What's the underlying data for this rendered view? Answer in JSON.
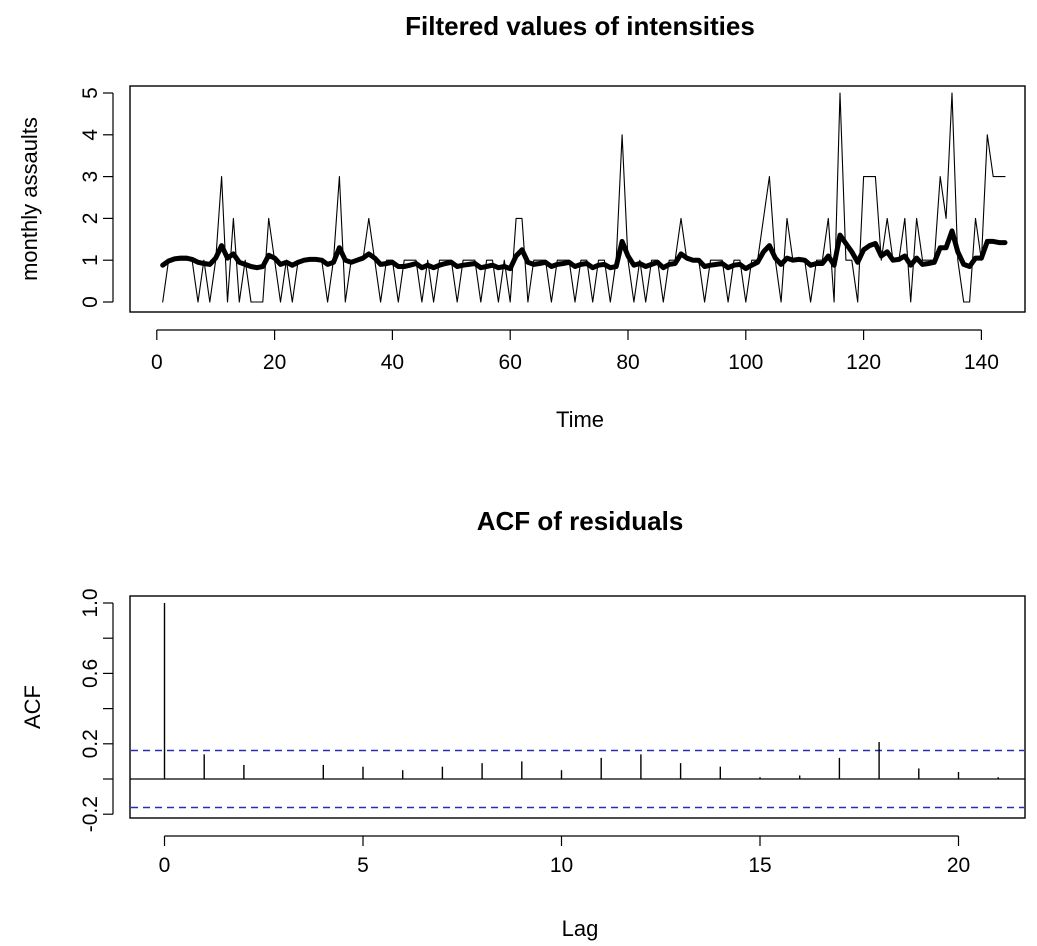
{
  "chart_data": [
    {
      "type": "line",
      "title": "Filtered values of intensities",
      "xlabel": "Time",
      "ylabel": "monthly assaults",
      "xlim": [
        1,
        144
      ],
      "ylim": [
        0,
        5
      ],
      "xticks": [
        0,
        20,
        40,
        60,
        80,
        100,
        120,
        140
      ],
      "yticks": [
        0,
        1,
        2,
        3,
        4,
        5
      ],
      "grid": false,
      "series": [
        {
          "style": "thin",
          "x": [
            1,
            2,
            3,
            4,
            5,
            6,
            7,
            8,
            9,
            10,
            11,
            12,
            13,
            14,
            15,
            16,
            17,
            18,
            19,
            20,
            21,
            22,
            23,
            24,
            25,
            26,
            27,
            28,
            29,
            30,
            31,
            32,
            33,
            34,
            35,
            36,
            37,
            38,
            39,
            40,
            41,
            42,
            43,
            44,
            45,
            46,
            47,
            48,
            49,
            50,
            51,
            52,
            53,
            54,
            55,
            56,
            57,
            58,
            59,
            60,
            61,
            62,
            63,
            64,
            65,
            66,
            67,
            68,
            69,
            70,
            71,
            72,
            73,
            74,
            75,
            76,
            77,
            78,
            79,
            80,
            81,
            82,
            83,
            84,
            85,
            86,
            87,
            88,
            89,
            90,
            91,
            92,
            93,
            94,
            95,
            96,
            97,
            98,
            99,
            100,
            101,
            102,
            103,
            104,
            105,
            106,
            107,
            108,
            109,
            110,
            111,
            112,
            113,
            114,
            115,
            116,
            117,
            118,
            119,
            120,
            121,
            122,
            123,
            124,
            125,
            126,
            127,
            128,
            129,
            130,
            131,
            132,
            133,
            134,
            135,
            136,
            137,
            138,
            139,
            140,
            141,
            142,
            143,
            144
          ],
          "y": [
            0,
            1,
            1,
            1,
            1,
            1,
            0,
            1,
            0,
            1,
            3,
            0,
            2,
            0,
            1,
            0,
            0,
            0,
            2,
            1,
            0,
            1,
            0,
            1,
            1,
            1,
            1,
            1,
            0,
            1,
            3,
            0,
            1,
            1,
            1,
            2,
            1,
            0,
            1,
            1,
            0,
            1,
            1,
            1,
            0,
            1,
            0,
            1,
            1,
            1,
            0,
            1,
            1,
            1,
            0,
            1,
            1,
            0,
            1,
            0,
            2,
            2,
            0,
            1,
            1,
            1,
            0,
            1,
            1,
            1,
            0,
            1,
            1,
            0,
            1,
            1,
            0,
            1,
            4,
            1,
            0,
            1,
            0,
            1,
            1,
            0,
            1,
            1,
            2,
            1,
            1,
            1,
            0,
            1,
            1,
            1,
            0,
            1,
            1,
            0,
            1,
            1,
            2,
            3,
            1,
            0,
            2,
            1,
            1,
            1,
            0,
            1,
            1,
            2,
            0,
            5,
            1,
            1,
            0,
            3,
            3,
            3,
            1,
            2,
            1,
            1,
            2,
            0,
            2,
            1,
            1,
            1,
            3,
            2,
            5,
            1,
            0,
            0,
            2,
            1,
            4,
            3,
            3,
            3
          ]
        },
        {
          "style": "thick",
          "x": [
            1,
            2,
            3,
            4,
            5,
            6,
            7,
            8,
            9,
            10,
            11,
            12,
            13,
            14,
            15,
            16,
            17,
            18,
            19,
            20,
            21,
            22,
            23,
            24,
            25,
            26,
            27,
            28,
            29,
            30,
            31,
            32,
            33,
            34,
            35,
            36,
            37,
            38,
            39,
            40,
            41,
            42,
            43,
            44,
            45,
            46,
            47,
            48,
            49,
            50,
            51,
            52,
            53,
            54,
            55,
            56,
            57,
            58,
            59,
            60,
            61,
            62,
            63,
            64,
            65,
            66,
            67,
            68,
            69,
            70,
            71,
            72,
            73,
            74,
            75,
            76,
            77,
            78,
            79,
            80,
            81,
            82,
            83,
            84,
            85,
            86,
            87,
            88,
            89,
            90,
            91,
            92,
            93,
            94,
            95,
            96,
            97,
            98,
            99,
            100,
            101,
            102,
            103,
            104,
            105,
            106,
            107,
            108,
            109,
            110,
            111,
            112,
            113,
            114,
            115,
            116,
            117,
            118,
            119,
            120,
            121,
            122,
            123,
            124,
            125,
            126,
            127,
            128,
            129,
            130,
            131,
            132,
            133,
            134,
            135,
            136,
            137,
            138,
            139,
            140,
            141,
            142,
            143,
            144
          ],
          "y": [
            0.88,
            0.98,
            1.03,
            1.05,
            1.05,
            1.02,
            0.95,
            0.92,
            0.9,
            1.05,
            1.35,
            1.05,
            1.15,
            0.95,
            0.9,
            0.85,
            0.82,
            0.85,
            1.12,
            1.05,
            0.9,
            0.95,
            0.88,
            0.95,
            1.0,
            1.02,
            1.02,
            1.0,
            0.9,
            0.95,
            1.3,
            1.0,
            0.95,
            1.0,
            1.05,
            1.15,
            1.05,
            0.9,
            0.92,
            0.95,
            0.85,
            0.85,
            0.88,
            0.92,
            0.82,
            0.88,
            0.82,
            0.88,
            0.92,
            0.95,
            0.85,
            0.88,
            0.9,
            0.92,
            0.82,
            0.85,
            0.88,
            0.82,
            0.85,
            0.8,
            1.1,
            1.25,
            0.95,
            0.9,
            0.92,
            0.95,
            0.85,
            0.9,
            0.92,
            0.95,
            0.85,
            0.9,
            0.92,
            0.82,
            0.88,
            0.9,
            0.82,
            0.85,
            1.45,
            1.1,
            0.88,
            0.92,
            0.85,
            0.9,
            0.95,
            0.82,
            0.9,
            0.92,
            1.15,
            1.05,
            1.0,
            1.0,
            0.85,
            0.88,
            0.9,
            0.92,
            0.82,
            0.88,
            0.9,
            0.8,
            0.88,
            0.95,
            1.2,
            1.35,
            1.05,
            0.9,
            1.05,
            1.0,
            1.02,
            1.0,
            0.88,
            0.92,
            0.92,
            1.1,
            0.88,
            1.6,
            1.4,
            1.2,
            0.95,
            1.25,
            1.35,
            1.4,
            1.1,
            1.2,
            1.0,
            1.02,
            1.1,
            0.88,
            1.05,
            0.9,
            0.92,
            0.95,
            1.3,
            1.3,
            1.7,
            1.2,
            0.9,
            0.85,
            1.05,
            1.05,
            1.45,
            1.45,
            1.42,
            1.42
          ]
        }
      ]
    },
    {
      "type": "bar",
      "title": "ACF of residuals",
      "xlabel": "Lag",
      "ylabel": "ACF",
      "xlim": [
        0,
        21
      ],
      "ylim": [
        -0.2,
        1.0
      ],
      "xticks": [
        0,
        5,
        10,
        15,
        20
      ],
      "yticks": [
        -0.2,
        0.2,
        0.6,
        1.0
      ],
      "grid": false,
      "lags": [
        0,
        1,
        2,
        3,
        4,
        5,
        6,
        7,
        8,
        9,
        10,
        11,
        12,
        13,
        14,
        15,
        16,
        17,
        18,
        19,
        20,
        21
      ],
      "values": [
        1.0,
        0.14,
        0.08,
        0.0,
        0.08,
        0.07,
        0.05,
        0.07,
        0.09,
        0.1,
        0.05,
        0.12,
        0.14,
        0.09,
        0.07,
        0.01,
        0.02,
        0.12,
        0.21,
        0.06,
        0.04,
        0.01
      ],
      "confidence_bound": 0.162
    }
  ]
}
